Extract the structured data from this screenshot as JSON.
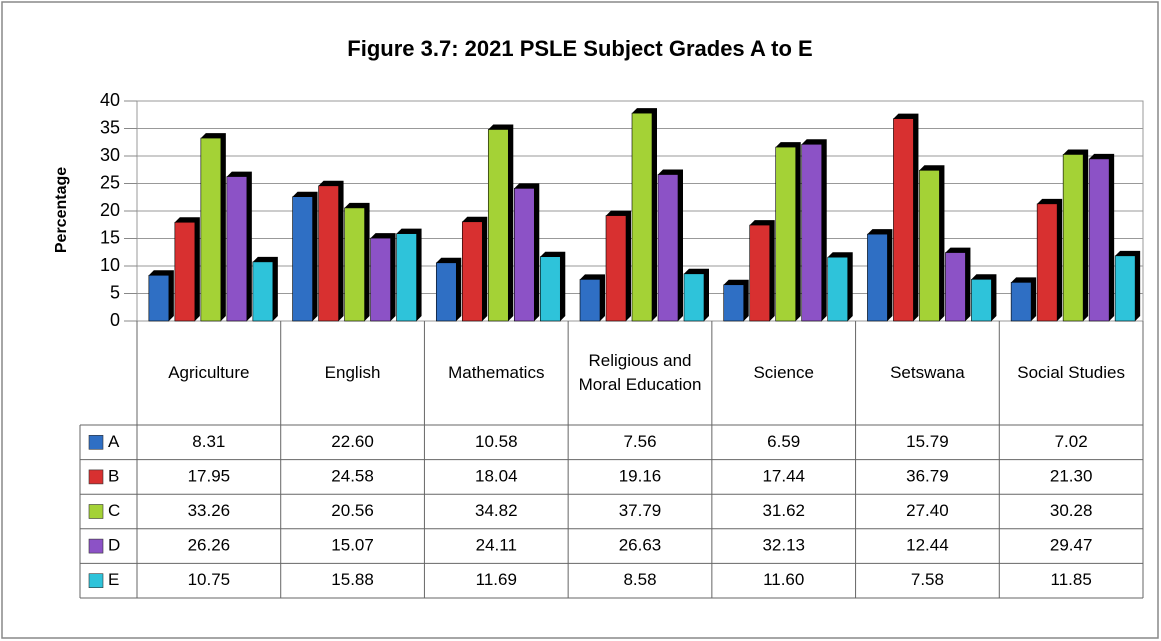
{
  "chart_data": {
    "type": "bar",
    "title": "Figure 3.7: 2021 PSLE Subject Grades A to E",
    "y_label": "Percentage",
    "categories": [
      "Agriculture",
      "English",
      "Mathematics",
      "Religious and Moral Education",
      "Science",
      "Setswana",
      "Social Studies"
    ],
    "series": [
      {
        "name": "A",
        "color": "#2f6fc4",
        "values": [
          8.31,
          22.6,
          10.58,
          7.56,
          6.59,
          15.79,
          7.02
        ],
        "value_labels": [
          "8.31",
          "22.60",
          "10.58",
          "7.56",
          "6.59",
          "15.79",
          "7.02"
        ]
      },
      {
        "name": "B",
        "color": "#d83030",
        "values": [
          17.95,
          24.58,
          18.04,
          19.16,
          17.44,
          36.79,
          21.3
        ],
        "value_labels": [
          "17.95",
          "24.58",
          "18.04",
          "19.16",
          "17.44",
          "36.79",
          "21.30"
        ]
      },
      {
        "name": "C",
        "color": "#a4d236",
        "values": [
          33.26,
          20.56,
          34.82,
          37.79,
          31.62,
          27.4,
          30.28
        ],
        "value_labels": [
          "33.26",
          "20.56",
          "34.82",
          "37.79",
          "31.62",
          "27.40",
          "30.28"
        ]
      },
      {
        "name": "D",
        "color": "#8c52c6",
        "values": [
          26.26,
          15.07,
          24.11,
          26.63,
          32.13,
          12.44,
          29.47
        ],
        "value_labels": [
          "26.26",
          "15.07",
          "24.11",
          "26.63",
          "32.13",
          "12.44",
          "29.47"
        ]
      },
      {
        "name": "E",
        "color": "#2ec3da",
        "values": [
          10.75,
          15.88,
          11.69,
          8.58,
          11.6,
          7.58,
          11.85
        ],
        "value_labels": [
          "10.75",
          "15.88",
          "11.69",
          "8.58",
          "11.60",
          "7.58",
          "11.85"
        ]
      }
    ],
    "ylim": [
      0,
      40
    ],
    "yticks": [
      0,
      5,
      10,
      15,
      20,
      25,
      30,
      35,
      40
    ],
    "grid": true,
    "data_table": true
  }
}
